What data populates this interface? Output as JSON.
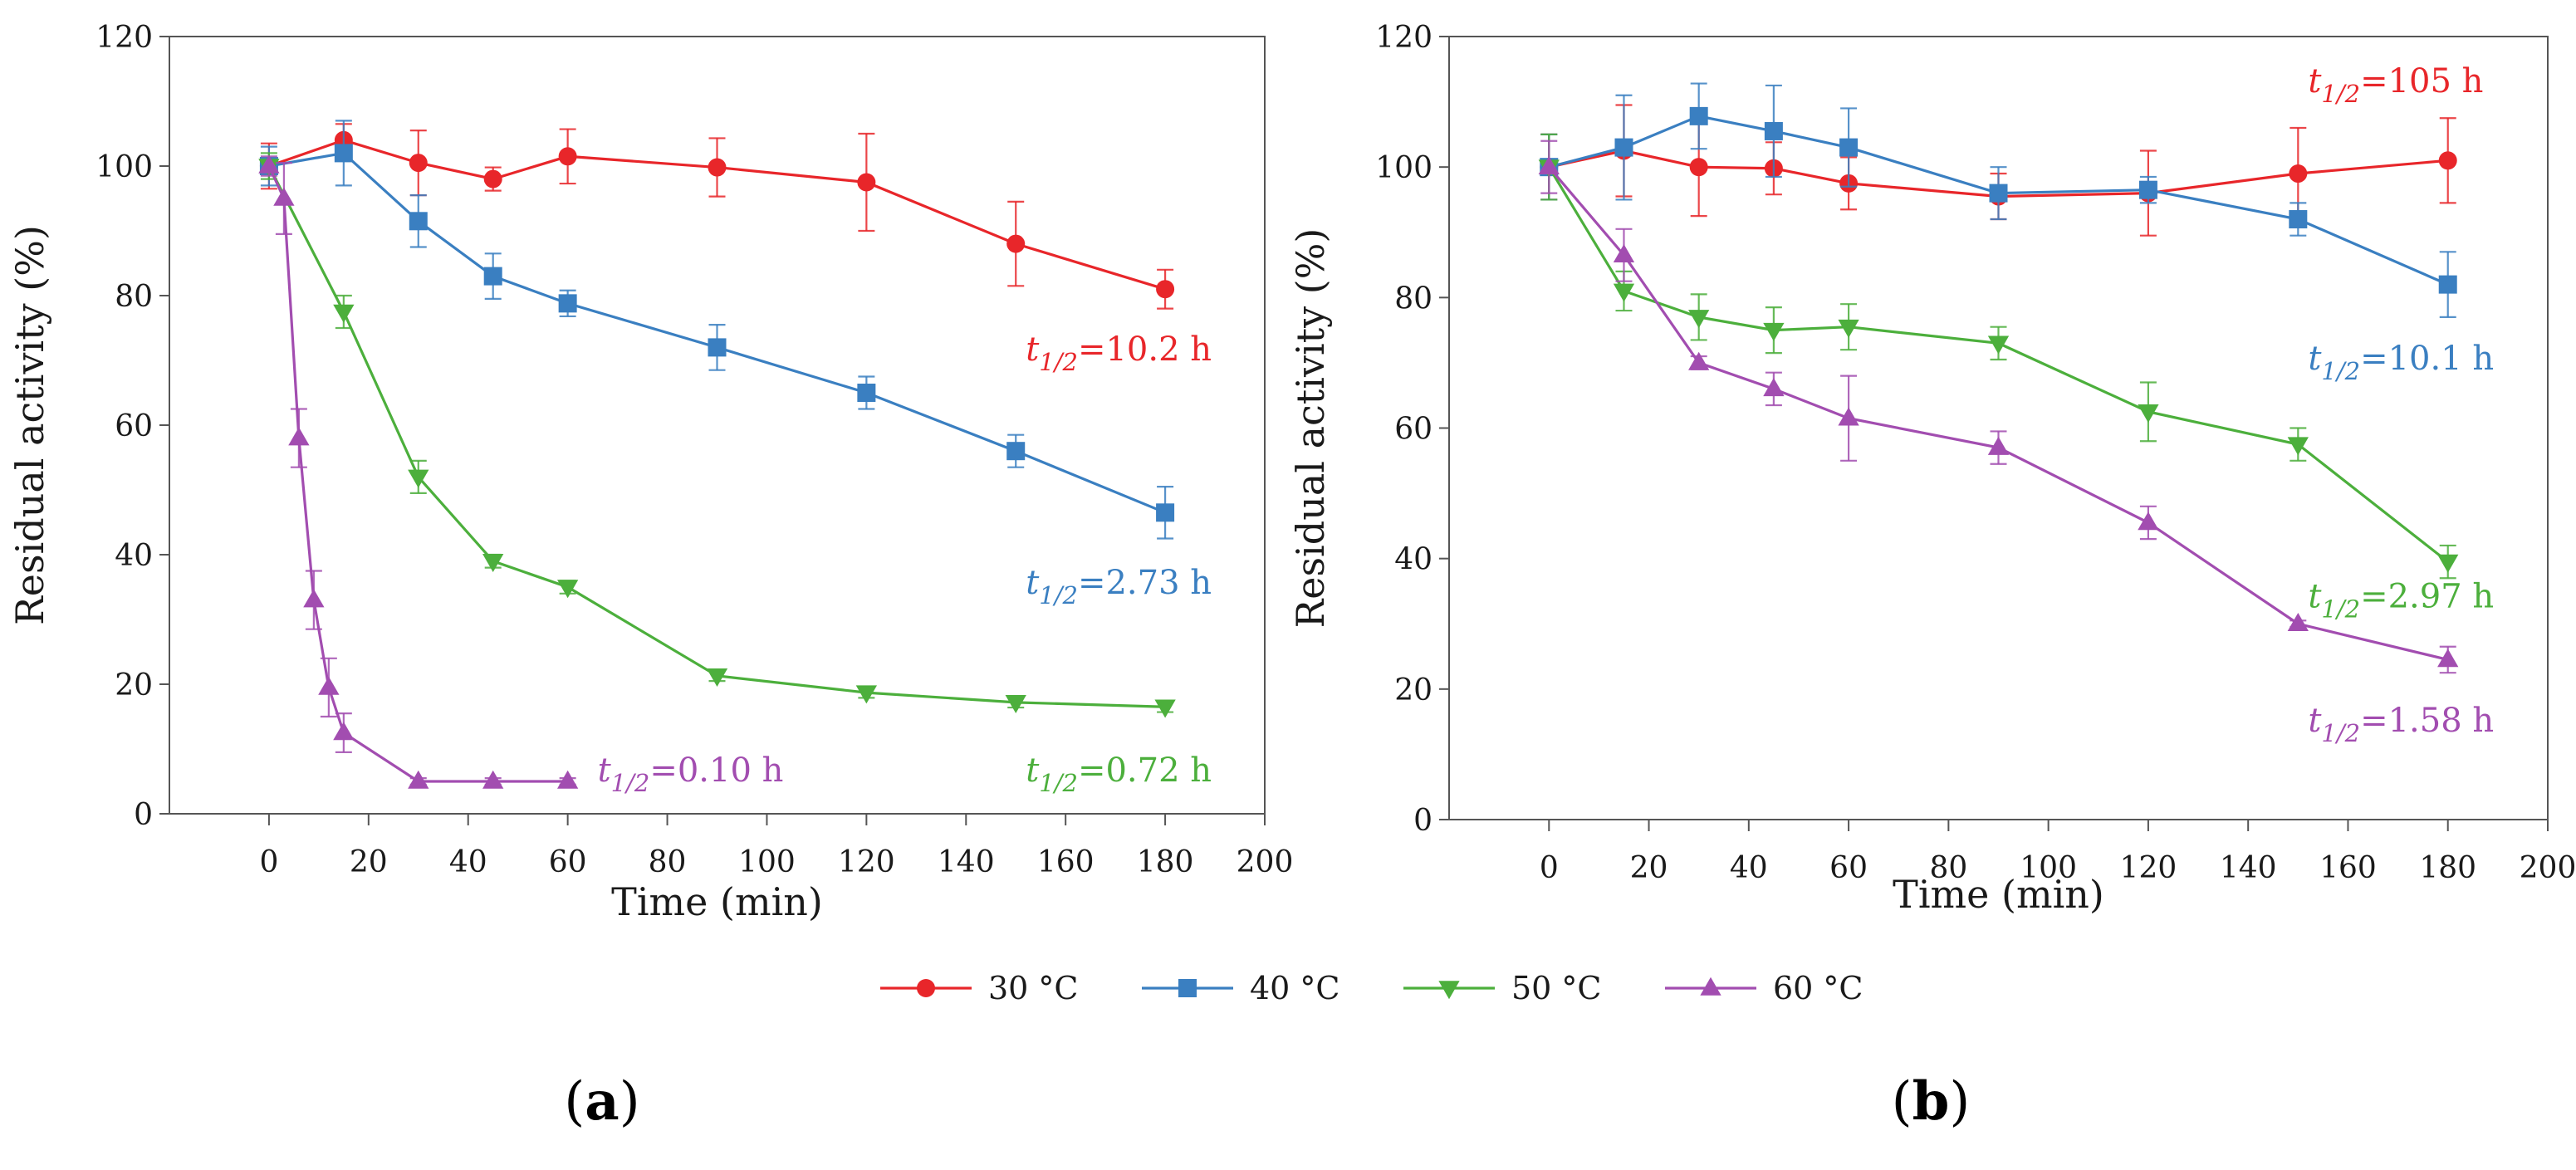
{
  "chart_data": [
    {
      "type": "line",
      "panel_label": "a",
      "title": "",
      "xlabel": "Time (min)",
      "ylabel": "Residual activity (%)",
      "xlim": [
        -20,
        200
      ],
      "ylim": [
        0,
        120
      ],
      "x_ticks": [
        0,
        20,
        40,
        60,
        80,
        100,
        120,
        140,
        160,
        180,
        200
      ],
      "y_ticks": [
        0,
        20,
        40,
        60,
        80,
        100,
        120
      ],
      "grid": false,
      "series": [
        {
          "name": "30 °C",
          "color": "#e8262a",
          "marker": "circle",
          "x": [
            0,
            15,
            30,
            45,
            60,
            90,
            120,
            150,
            180
          ],
          "y": [
            100,
            104,
            100.5,
            98,
            101.5,
            99.8,
            97.5,
            88,
            81
          ],
          "err": [
            3.5,
            2.5,
            5,
            1.8,
            4.2,
            4.5,
            7.5,
            6.5,
            3
          ]
        },
        {
          "name": "40 °C",
          "color": "#3a7fc1",
          "marker": "square",
          "x": [
            0,
            15,
            30,
            45,
            60,
            90,
            120,
            150,
            180
          ],
          "y": [
            100,
            102,
            91.5,
            83,
            78.8,
            72,
            65,
            56,
            46.5
          ],
          "err": [
            3,
            5,
            4,
            3.5,
            2,
            3.5,
            2.5,
            2.5,
            4
          ]
        },
        {
          "name": "50 °C",
          "color": "#4caf3c",
          "marker": "triangle-down",
          "x": [
            0,
            15,
            30,
            45,
            60,
            90,
            120,
            150,
            180
          ],
          "y": [
            100,
            77.5,
            52,
            39,
            35,
            21.3,
            18.7,
            17.2,
            16.5
          ],
          "err": [
            2,
            2.5,
            2.5,
            1,
            1,
            0.8,
            0.8,
            0.8,
            0.8
          ]
        },
        {
          "name": "60 °C",
          "color": "#a24db0",
          "marker": "triangle-up",
          "x": [
            0,
            3,
            6,
            9,
            12,
            15,
            30,
            45,
            60
          ],
          "y": [
            100,
            95,
            58,
            33,
            19.5,
            12.5,
            5,
            5,
            5
          ],
          "err": [
            1.5,
            5.5,
            4.5,
            4.5,
            4.5,
            3,
            0.5,
            0.5,
            0.5
          ]
        }
      ],
      "annotations": [
        {
          "text": "t",
          "sub": "1/2",
          "value": "=10.2 h",
          "x": 152,
          "y": 70,
          "color": "#e8262a"
        },
        {
          "text": "t",
          "sub": "1/2",
          "value": "=2.73 h",
          "x": 152,
          "y": 34,
          "color": "#3a7fc1"
        },
        {
          "text": "t",
          "sub": "1/2",
          "value": "=0.72 h",
          "x": 152,
          "y": 5,
          "color": "#4caf3c"
        },
        {
          "text": "t",
          "sub": "1/2",
          "value": "=0.10 h",
          "x": 66,
          "y": 5,
          "color": "#a24db0"
        }
      ]
    },
    {
      "type": "line",
      "panel_label": "b",
      "title": "",
      "xlabel": "Time (min)",
      "ylabel": "Residual activity (%)",
      "xlim": [
        -20,
        200
      ],
      "ylim": [
        0,
        120
      ],
      "x_ticks": [
        0,
        20,
        40,
        60,
        80,
        100,
        120,
        140,
        160,
        180,
        200
      ],
      "y_ticks": [
        0,
        20,
        40,
        60,
        80,
        100,
        120
      ],
      "grid": false,
      "series": [
        {
          "name": "30 °C",
          "color": "#e8262a",
          "marker": "circle",
          "x": [
            0,
            15,
            30,
            45,
            60,
            90,
            120,
            150,
            180
          ],
          "y": [
            100,
            102.5,
            100,
            99.8,
            97.5,
            95.5,
            96,
            99,
            101
          ],
          "err": [
            5,
            7,
            7.5,
            4,
            4,
            3.5,
            6.5,
            7,
            6.5
          ]
        },
        {
          "name": "40 °C",
          "color": "#3a7fc1",
          "marker": "square",
          "x": [
            0,
            15,
            30,
            45,
            60,
            90,
            120,
            150,
            180
          ],
          "y": [
            100,
            103,
            107.8,
            105.5,
            103,
            96,
            96.5,
            92,
            82
          ],
          "err": [
            5,
            8,
            5,
            7,
            6,
            4,
            2,
            2.5,
            5
          ]
        },
        {
          "name": "50 °C",
          "color": "#4caf3c",
          "marker": "triangle-down",
          "x": [
            0,
            15,
            30,
            45,
            60,
            90,
            120,
            150,
            180
          ],
          "y": [
            100,
            81,
            77,
            75,
            75.5,
            73,
            62.5,
            57.5,
            39.5
          ],
          "err": [
            5,
            3,
            3.5,
            3.5,
            3.5,
            2.5,
            4.5,
            2.5,
            2.5
          ]
        },
        {
          "name": "60 °C",
          "color": "#a24db0",
          "marker": "triangle-up",
          "x": [
            0,
            15,
            30,
            45,
            60,
            90,
            120,
            150,
            180
          ],
          "y": [
            100,
            86.5,
            70,
            66,
            61.5,
            57,
            45.5,
            30,
            24.5
          ],
          "err": [
            4,
            4,
            1,
            2.5,
            6.5,
            2.5,
            2.5,
            0.5,
            2
          ]
        }
      ],
      "annotations": [
        {
          "text": "t",
          "sub": "1/2",
          "value": "=105 h",
          "x": 152,
          "y": 111.5,
          "color": "#e8262a"
        },
        {
          "text": "t",
          "sub": "1/2",
          "value": "=10.1 h",
          "x": 152,
          "y": 69,
          "color": "#3a7fc1"
        },
        {
          "text": "t",
          "sub": "1/2",
          "value": "=2.97 h",
          "x": 152,
          "y": 32.5,
          "color": "#4caf3c"
        },
        {
          "text": "t",
          "sub": "1/2",
          "value": "=1.58 h",
          "x": 152,
          "y": 13.5,
          "color": "#a24db0"
        }
      ]
    }
  ],
  "legend": {
    "placement": "bottom-center",
    "entries": [
      {
        "label": "30 °C",
        "color": "#e8262a",
        "marker": "circle"
      },
      {
        "label": "40 °C",
        "color": "#3a7fc1",
        "marker": "square"
      },
      {
        "label": "50 °C",
        "color": "#4caf3c",
        "marker": "triangle-down"
      },
      {
        "label": "60 °C",
        "color": "#a24db0",
        "marker": "triangle-up"
      }
    ]
  },
  "panel_labels": [
    {
      "open": "(",
      "letter": "a",
      "close": ")"
    },
    {
      "open": "(",
      "letter": "b",
      "close": ")"
    }
  ]
}
